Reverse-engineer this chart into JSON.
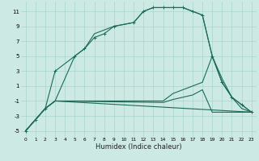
{
  "xlabel": "Humidex (Indice chaleur)",
  "bg_color": "#cce9e4",
  "grid_color": "#aad4ce",
  "line_color": "#1a6b5a",
  "xlim": [
    -0.5,
    23.5
  ],
  "ylim": [
    -5.8,
    12.3
  ],
  "xticks": [
    0,
    1,
    2,
    3,
    4,
    5,
    6,
    7,
    8,
    9,
    10,
    11,
    12,
    13,
    14,
    15,
    16,
    17,
    18,
    19,
    20,
    21,
    22,
    23
  ],
  "yticks": [
    -5,
    -3,
    -1,
    1,
    3,
    5,
    7,
    9,
    11
  ],
  "curve_marked": {
    "x": [
      0,
      1,
      2,
      3,
      5,
      6,
      7,
      8,
      9,
      11,
      12,
      13,
      14,
      15,
      16,
      17,
      18,
      19,
      20,
      21,
      22,
      23
    ],
    "y": [
      -5,
      -3.5,
      -2,
      3,
      5,
      6,
      7.5,
      8,
      9,
      9.5,
      11,
      11.5,
      11.5,
      11.5,
      11.5,
      11,
      10.5,
      5,
      1.5,
      -0.5,
      -1.5,
      -2.5
    ]
  },
  "curve2": {
    "x": [
      0,
      2,
      3,
      5,
      6,
      7,
      8,
      9,
      11,
      12,
      13,
      14,
      15,
      16,
      17,
      18,
      19,
      20,
      21,
      22,
      23
    ],
    "y": [
      -5,
      -2,
      -1,
      5,
      6,
      8,
      8.5,
      9,
      9.5,
      11,
      11.5,
      11.5,
      11.5,
      11.5,
      11,
      10.5,
      5,
      1.5,
      -0.5,
      -1.5,
      -2.5
    ]
  },
  "curve3": {
    "x": [
      0,
      2,
      3,
      23
    ],
    "y": [
      -5,
      -2,
      -1,
      -2.5
    ]
  },
  "curve4": {
    "x": [
      0,
      2,
      3,
      14,
      15,
      16,
      17,
      18,
      19,
      20,
      21,
      22,
      23
    ],
    "y": [
      -5,
      -2,
      -1,
      -1,
      0,
      0.5,
      1,
      1.5,
      5,
      2,
      -0.5,
      -2,
      -2.5
    ]
  },
  "curve5": {
    "x": [
      0,
      2,
      3,
      14,
      15,
      16,
      17,
      18,
      19,
      23
    ],
    "y": [
      -5,
      -2,
      -1,
      -1.2,
      -0.8,
      -0.5,
      -0.2,
      0.5,
      -2.5,
      -2.5
    ]
  }
}
